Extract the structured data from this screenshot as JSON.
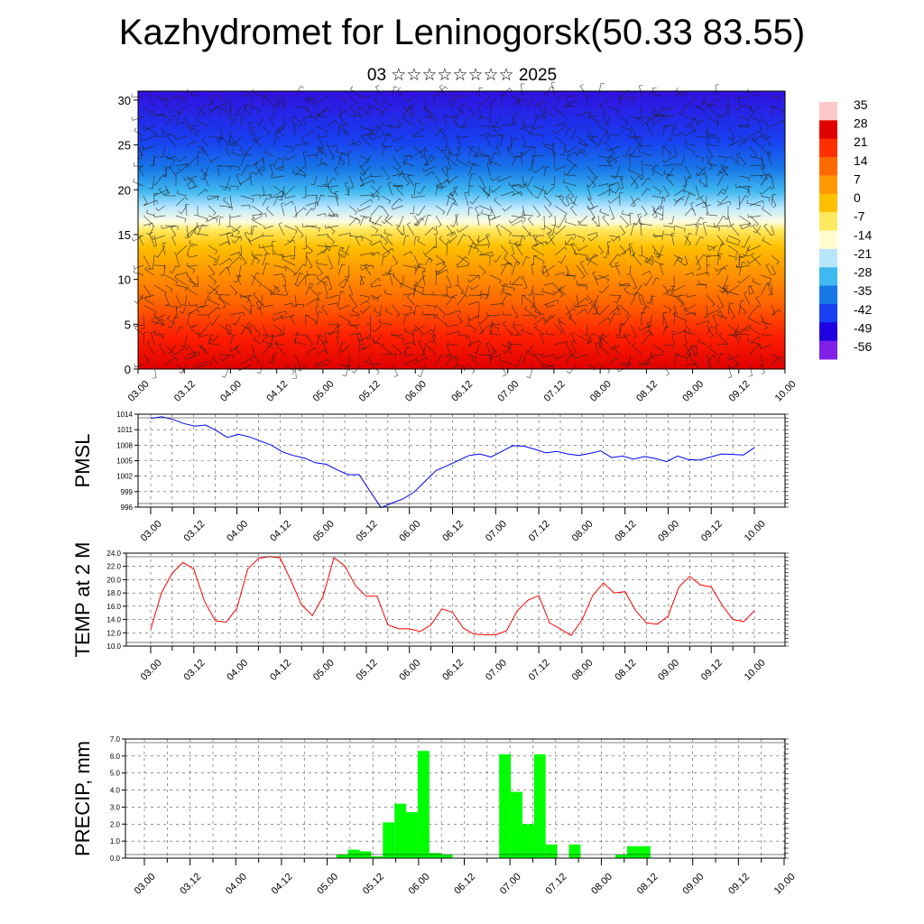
{
  "title": "Kazhydromet for Leninogorsk(50.33 83.55)",
  "subtitle": "03 ☆☆☆☆☆☆☆☆ 2025",
  "chart_data": [
    {
      "type": "heatmap",
      "name": "cross-section",
      "y_ticks": [
        0,
        5,
        10,
        15,
        20,
        25,
        30
      ],
      "ylim": [
        0,
        31
      ],
      "x_ticks": [
        "03.00",
        "03.12",
        "04.00",
        "04.12",
        "05.00",
        "05.12",
        "06.00",
        "06.12",
        "07.00",
        "07.12",
        "08.00",
        "08.12",
        "09.00",
        "09.12",
        "10.00"
      ],
      "colorbar_labels": [
        "35",
        "28",
        "21",
        "14",
        "7",
        "0",
        "-7",
        "-14",
        "-21",
        "-28",
        "-35",
        "-42",
        "-49",
        "-56"
      ],
      "colorbar_colors": [
        "#ffc8c8",
        "#e00000",
        "#ff3000",
        "#ff6a00",
        "#ff9800",
        "#ffc000",
        "#ffe860",
        "#fffdd0",
        "#b8e6ff",
        "#40b8f0",
        "#1878e8",
        "#1840f0",
        "#2000e0",
        "#8020e8"
      ]
    },
    {
      "type": "line",
      "name": "pmsl",
      "ylabel": "PMSL",
      "y_ticks": [
        996,
        999,
        1002,
        1005,
        1008,
        1011,
        1014
      ],
      "ylim": [
        996,
        1014
      ],
      "x_ticks": [
        "03.00",
        "03.12",
        "04.00",
        "04.12",
        "05.00",
        "05.12",
        "06.00",
        "06.12",
        "07.00",
        "07.12",
        "08.00",
        "08.12",
        "09.00",
        "09.12",
        "10.00"
      ],
      "color": "#0000ff",
      "values": [
        1013.2,
        1013.5,
        1013.0,
        1012.2,
        1011.7,
        1011.9,
        1010.8,
        1009.5,
        1010.1,
        1009.6,
        1008.8,
        1008.0,
        1006.7,
        1006.0,
        1005.5,
        1004.6,
        1004.3,
        1003.2,
        1002.3,
        1002.3,
        999.0,
        995.9,
        996.8,
        997.6,
        998.9,
        1001.0,
        1003.1,
        1004.0,
        1005.0,
        1006.0,
        1006.3,
        1005.7,
        1006.8,
        1007.9,
        1007.8,
        1007.2,
        1006.5,
        1006.8,
        1006.3,
        1006.0,
        1006.4,
        1006.9,
        1005.6,
        1005.9,
        1005.3,
        1005.8,
        1005.4,
        1004.8,
        1005.9,
        1005.2,
        1005.1,
        1005.7,
        1006.3,
        1006.2,
        1006.1,
        1007.5
      ]
    },
    {
      "type": "line",
      "name": "temperature",
      "ylabel": "TEMP at 2 M",
      "y_ticks": [
        "10.0",
        "12.0",
        "14.0",
        "16.0",
        "18.0",
        "20.0",
        "22.0",
        "24.0"
      ],
      "ylim": [
        10,
        24
      ],
      "x_ticks": [
        "03.00",
        "03.12",
        "04.00",
        "04.12",
        "05.00",
        "05.12",
        "06.00",
        "06.12",
        "07.00",
        "07.12",
        "08.00",
        "08.12",
        "09.00",
        "09.12",
        "10.00"
      ],
      "color": "#ff0000",
      "values": [
        12.5,
        18.0,
        21.0,
        22.6,
        21.6,
        16.7,
        13.8,
        13.6,
        15.7,
        21.6,
        23.2,
        23.5,
        23.3,
        19.9,
        16.2,
        14.6,
        17.5,
        23.3,
        22.1,
        19.1,
        17.5,
        17.5,
        13.2,
        12.6,
        12.6,
        12.2,
        13.2,
        15.6,
        15.1,
        12.7,
        11.8,
        11.7,
        11.7,
        12.3,
        15.3,
        16.9,
        17.6,
        13.5,
        12.6,
        11.6,
        13.9,
        17.6,
        19.5,
        18.0,
        18.2,
        15.3,
        13.5,
        13.3,
        14.5,
        18.9,
        20.5,
        19.2,
        18.9,
        16.2,
        14.0,
        13.7,
        15.3
      ]
    },
    {
      "type": "bar",
      "name": "precipitation",
      "ylabel": "PRECIP, mm",
      "y_ticks": [
        "0.0",
        "1.0",
        "2.0",
        "3.0",
        "4.0",
        "5.0",
        "6.0",
        "7.0"
      ],
      "ylim": [
        0,
        7
      ],
      "x_ticks": [
        "03.00",
        "03.12",
        "04.00",
        "04.12",
        "05.00",
        "05.12",
        "06.00",
        "06.12",
        "07.00",
        "07.12",
        "08.00",
        "08.12",
        "09.00",
        "09.12",
        "10.00"
      ],
      "color": "#00ff00",
      "values": [
        0,
        0,
        0,
        0,
        0,
        0,
        0,
        0,
        0,
        0,
        0,
        0,
        0,
        0,
        0,
        0,
        0,
        0.2,
        0.5,
        0.4,
        0.1,
        2.1,
        3.2,
        2.7,
        6.3,
        0.3,
        0.2,
        0,
        0,
        0,
        0,
        6.1,
        3.9,
        2.0,
        6.1,
        0.8,
        0,
        0.8,
        0,
        0,
        0,
        0.2,
        0.7,
        0.7,
        0,
        0,
        0,
        0,
        0,
        0,
        0,
        0,
        0,
        0,
        0,
        0
      ]
    }
  ]
}
